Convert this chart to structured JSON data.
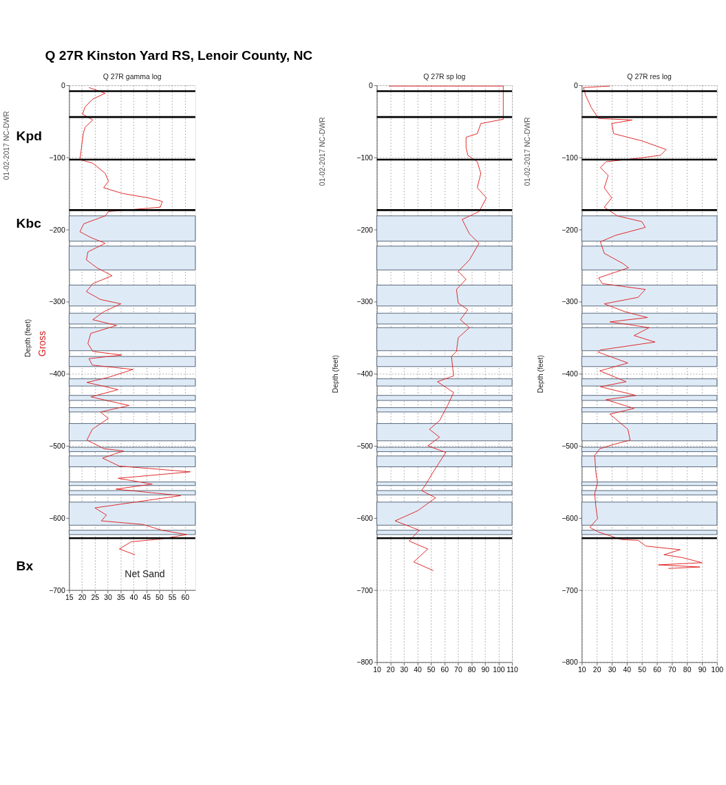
{
  "chart_data": [
    {
      "type": "line",
      "title": "Q 27R Kinston Yard RS, Lenoir County, NC",
      "subtitle": "Q 27R gamma log",
      "ylabel": "Depth (feet)",
      "series": [
        {
          "color": "#e02020",
          "x": [
            22.7,
            29,
            24.2,
            21.2,
            20.2,
            24.2,
            21.2,
            20.5,
            20,
            19.6,
            19.2,
            24.2,
            29,
            30.3,
            28.4,
            35.8,
            45.7,
            51.2,
            50.4,
            30.3,
            29,
            20.7,
            19.2,
            23.4,
            29,
            22.3,
            21.7,
            25.8,
            31.7,
            24.2,
            21.7,
            27.2,
            35.1,
            28.4,
            24.2,
            33.4,
            23.4,
            22.3,
            24.2,
            35.4,
            22.7,
            24,
            39.8,
            30.2,
            21.9,
            34,
            23.5,
            38.3,
            27.2,
            30.2,
            24,
            21.9,
            28.6,
            36.1,
            28,
            34.5,
            62,
            34,
            47.3,
            33.2,
            58.3,
            40.6,
            25,
            29.5,
            27.5,
            43.6,
            51,
            60.6,
            51,
            39.1,
            34.5,
            40.6
          ],
          "values": [
            -3,
            -11,
            -19,
            -30,
            -40,
            -48,
            -58,
            -67,
            -80,
            -92,
            -103,
            -108,
            -122,
            -133,
            -142,
            -150,
            -156,
            -161,
            -169,
            -175,
            -181,
            -192,
            -203,
            -211,
            -219,
            -231,
            -242,
            -253,
            -264,
            -275,
            -286,
            -297,
            -303,
            -314,
            -325,
            -333,
            -344,
            -358,
            -369,
            -374,
            -379,
            -388,
            -394,
            -405,
            -412,
            -422,
            -432,
            -444,
            -453,
            -462,
            -477,
            -492,
            -504,
            -507,
            -517,
            -528,
            -536,
            -545,
            -553,
            -560,
            -569,
            -578,
            -586,
            -596,
            -604,
            -609,
            -617,
            -623,
            -629,
            -633,
            -643,
            -651
          ]
        }
      ],
      "xlim": [
        15,
        64
      ],
      "xticks": [
        15,
        20,
        25,
        30,
        35,
        40,
        45,
        50,
        55,
        60
      ],
      "ylim": [
        -700,
        0
      ],
      "yticks": [
        0,
        -100,
        -200,
        -300,
        -400,
        -500,
        -600,
        -700
      ],
      "grid": true,
      "ref_lines": [
        {
          "axis": "y",
          "value": -8,
          "color": "#000000"
        },
        {
          "axis": "y",
          "value": -44,
          "color": "#000000"
        },
        {
          "axis": "y",
          "value": -103,
          "color": "#000000"
        },
        {
          "axis": "y",
          "value": -173,
          "color": "#000000"
        },
        {
          "axis": "y",
          "value": -628,
          "color": "#000000"
        }
      ],
      "bands": [
        {
          "axis": "y",
          "from": -181,
          "to": -216,
          "color": "#deebf7"
        },
        {
          "axis": "y",
          "from": -223,
          "to": -256,
          "color": "#deebf7"
        },
        {
          "axis": "y",
          "from": -277,
          "to": -306,
          "color": "#deebf7"
        },
        {
          "axis": "y",
          "from": -316,
          "to": -331,
          "color": "#deebf7"
        },
        {
          "axis": "y",
          "from": -336,
          "to": -368,
          "color": "#deebf7"
        },
        {
          "axis": "y",
          "from": -376,
          "to": -390,
          "color": "#deebf7"
        },
        {
          "axis": "y",
          "from": -407,
          "to": -417,
          "color": "#deebf7"
        },
        {
          "axis": "y",
          "from": -430,
          "to": -437,
          "color": "#deebf7"
        },
        {
          "axis": "y",
          "from": -447,
          "to": -453,
          "color": "#deebf7"
        },
        {
          "axis": "y",
          "from": -469,
          "to": -493,
          "color": "#deebf7"
        },
        {
          "axis": "y",
          "from": -502,
          "to": -508,
          "color": "#deebf7"
        },
        {
          "axis": "y",
          "from": -514,
          "to": -529,
          "color": "#deebf7"
        },
        {
          "axis": "y",
          "from": -550,
          "to": -555,
          "color": "#deebf7"
        },
        {
          "axis": "y",
          "from": -562,
          "to": -568,
          "color": "#deebf7"
        },
        {
          "axis": "y",
          "from": -578,
          "to": -610,
          "color": "#deebf7"
        },
        {
          "axis": "y",
          "from": -617,
          "to": -623,
          "color": "#deebf7"
        }
      ],
      "annotations": [
        "Kpd",
        "Kbc",
        "Bx",
        "Gross",
        "Net Sand",
        "01-02-2017 NC-DWR"
      ]
    },
    {
      "type": "line",
      "subtitle": "Q 27R sp log",
      "ylabel": "Depth (feet)",
      "series": [
        {
          "color": "#e02020",
          "x": [
            18.9,
            103.5,
            103.5,
            86.9,
            84.3,
            76,
            76,
            77.3,
            84.3,
            86.9,
            84.3,
            91,
            85.6,
            73.1,
            78.5,
            85.6,
            78.5,
            70.2,
            76,
            68.9,
            70.2,
            77.3,
            71.8,
            78.5,
            70.2,
            68.9,
            65.2,
            66.8,
            54.8,
            66.8,
            62.3,
            56.4,
            48.9,
            56.4,
            47.7,
            61,
            51.8,
            46,
            43.1,
            53.5,
            40.2,
            23.5,
            41.4,
            33.9,
            47.7,
            37.3,
            51.8
          ],
          "values": [
            -1,
            -1,
            -47,
            -53,
            -67,
            -72,
            -86,
            -97,
            -106,
            -122,
            -142,
            -156,
            -175,
            -186,
            -206,
            -219,
            -242,
            -258,
            -269,
            -283,
            -302,
            -311,
            -325,
            -336,
            -350,
            -369,
            -376,
            -403,
            -411,
            -426,
            -444,
            -465,
            -477,
            -488,
            -500,
            -509,
            -536,
            -554,
            -562,
            -572,
            -590,
            -604,
            -617,
            -632,
            -643,
            -661,
            -673
          ]
        }
      ],
      "xlim": [
        10,
        110
      ],
      "xticks": [
        10,
        20,
        30,
        40,
        50,
        60,
        70,
        80,
        90,
        100,
        110
      ],
      "ylim": [
        -800,
        0
      ],
      "yticks": [
        0,
        -100,
        -200,
        -300,
        -400,
        -500,
        -600,
        -700,
        -800
      ],
      "grid": true,
      "ref_lines": [
        {
          "axis": "y",
          "value": -8,
          "color": "#000000"
        },
        {
          "axis": "y",
          "value": -44,
          "color": "#000000"
        },
        {
          "axis": "y",
          "value": -103,
          "color": "#000000"
        },
        {
          "axis": "y",
          "value": -173,
          "color": "#000000"
        },
        {
          "axis": "y",
          "value": -628,
          "color": "#000000"
        }
      ],
      "bands": [
        {
          "axis": "y",
          "from": -181,
          "to": -216,
          "color": "#deebf7"
        },
        {
          "axis": "y",
          "from": -223,
          "to": -256,
          "color": "#deebf7"
        },
        {
          "axis": "y",
          "from": -277,
          "to": -306,
          "color": "#deebf7"
        },
        {
          "axis": "y",
          "from": -316,
          "to": -331,
          "color": "#deebf7"
        },
        {
          "axis": "y",
          "from": -336,
          "to": -368,
          "color": "#deebf7"
        },
        {
          "axis": "y",
          "from": -376,
          "to": -390,
          "color": "#deebf7"
        },
        {
          "axis": "y",
          "from": -407,
          "to": -417,
          "color": "#deebf7"
        },
        {
          "axis": "y",
          "from": -430,
          "to": -437,
          "color": "#deebf7"
        },
        {
          "axis": "y",
          "from": -447,
          "to": -453,
          "color": "#deebf7"
        },
        {
          "axis": "y",
          "from": -469,
          "to": -493,
          "color": "#deebf7"
        },
        {
          "axis": "y",
          "from": -502,
          "to": -508,
          "color": "#deebf7"
        },
        {
          "axis": "y",
          "from": -514,
          "to": -529,
          "color": "#deebf7"
        },
        {
          "axis": "y",
          "from": -550,
          "to": -555,
          "color": "#deebf7"
        },
        {
          "axis": "y",
          "from": -562,
          "to": -568,
          "color": "#deebf7"
        },
        {
          "axis": "y",
          "from": -578,
          "to": -610,
          "color": "#deebf7"
        },
        {
          "axis": "y",
          "from": -617,
          "to": -623,
          "color": "#deebf7"
        }
      ],
      "annotations": [
        "01-02-2017 NC-DWR"
      ]
    },
    {
      "type": "line",
      "subtitle": "Q 27R res log",
      "ylabel": "Depth (feet)",
      "series": [
        {
          "color": "#e02020",
          "x": [
            28.7,
            11.1,
            12.6,
            16.4,
            21.2,
            43.7,
            29.9,
            31.3,
            50,
            66.2,
            62.4,
            47.5,
            26.1,
            22.4,
            27.6,
            25,
            29.9,
            25,
            33.6,
            50,
            52.3,
            32.5,
            22.4,
            25,
            37.3,
            41.1,
            21.2,
            23.7,
            52.3,
            47.5,
            25,
            38.8,
            53.8,
            28.7,
            54.9,
            44.8,
            58.7,
            22.4,
            20.9,
            40.7,
            22,
            39.6,
            22.4,
            46,
            26.1,
            44.8,
            28.7,
            40.7,
            42.2,
            31.3,
            22,
            18.6,
            19.4,
            20.5,
            18.6,
            19.4,
            20.5,
            15.4,
            20.5,
            36.6,
            47.5,
            52.7,
            75.5,
            64.7,
            77,
            90.1,
            61,
            88.6,
            67.7
          ],
          "values": [
            -1,
            -3,
            -14,
            -31,
            -46,
            -48,
            -53,
            -67,
            -77,
            -89,
            -97,
            -101,
            -106,
            -114,
            -125,
            -142,
            -156,
            -169,
            -181,
            -189,
            -197,
            -208,
            -217,
            -233,
            -247,
            -253,
            -267,
            -275,
            -283,
            -294,
            -303,
            -314,
            -322,
            -328,
            -336,
            -347,
            -356,
            -367,
            -370,
            -385,
            -396,
            -411,
            -418,
            -430,
            -436,
            -448,
            -456,
            -477,
            -492,
            -498,
            -504,
            -513,
            -537,
            -551,
            -566,
            -584,
            -601,
            -613,
            -619,
            -630,
            -631,
            -639,
            -644,
            -651,
            -655,
            -662,
            -665,
            -668,
            -670
          ]
        }
      ],
      "xlim": [
        10,
        100
      ],
      "xticks": [
        10,
        20,
        30,
        40,
        50,
        60,
        70,
        80,
        90,
        100
      ],
      "ylim": [
        -800,
        0
      ],
      "yticks": [
        0,
        -100,
        -200,
        -300,
        -400,
        -500,
        -600,
        -700,
        -800
      ],
      "grid": true,
      "ref_lines": [
        {
          "axis": "y",
          "value": -8,
          "color": "#000000"
        },
        {
          "axis": "y",
          "value": -44,
          "color": "#000000"
        },
        {
          "axis": "y",
          "value": -103,
          "color": "#000000"
        },
        {
          "axis": "y",
          "value": -173,
          "color": "#000000"
        },
        {
          "axis": "y",
          "value": -628,
          "color": "#000000"
        }
      ],
      "bands": [
        {
          "axis": "y",
          "from": -181,
          "to": -216,
          "color": "#deebf7"
        },
        {
          "axis": "y",
          "from": -223,
          "to": -256,
          "color": "#deebf7"
        },
        {
          "axis": "y",
          "from": -277,
          "to": -306,
          "color": "#deebf7"
        },
        {
          "axis": "y",
          "from": -316,
          "to": -331,
          "color": "#deebf7"
        },
        {
          "axis": "y",
          "from": -336,
          "to": -368,
          "color": "#deebf7"
        },
        {
          "axis": "y",
          "from": -376,
          "to": -390,
          "color": "#deebf7"
        },
        {
          "axis": "y",
          "from": -407,
          "to": -417,
          "color": "#deebf7"
        },
        {
          "axis": "y",
          "from": -430,
          "to": -437,
          "color": "#deebf7"
        },
        {
          "axis": "y",
          "from": -447,
          "to": -453,
          "color": "#deebf7"
        },
        {
          "axis": "y",
          "from": -469,
          "to": -493,
          "color": "#deebf7"
        },
        {
          "axis": "y",
          "from": -502,
          "to": -508,
          "color": "#deebf7"
        },
        {
          "axis": "y",
          "from": -514,
          "to": -529,
          "color": "#deebf7"
        },
        {
          "axis": "y",
          "from": -550,
          "to": -555,
          "color": "#deebf7"
        },
        {
          "axis": "y",
          "from": -562,
          "to": -568,
          "color": "#deebf7"
        },
        {
          "axis": "y",
          "from": -578,
          "to": -610,
          "color": "#deebf7"
        },
        {
          "axis": "y",
          "from": -617,
          "to": -623,
          "color": "#deebf7"
        }
      ],
      "annotations": [
        "01-02-2017 NC-DWR"
      ]
    }
  ]
}
